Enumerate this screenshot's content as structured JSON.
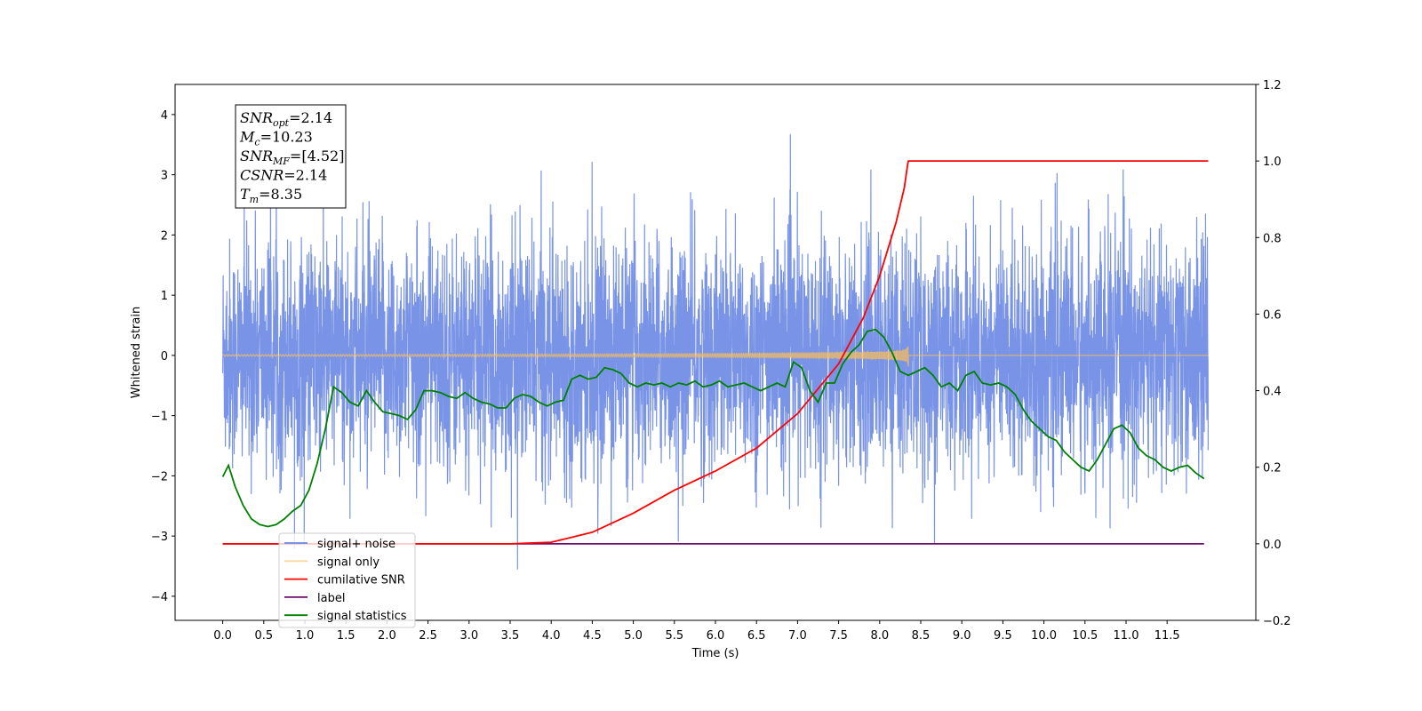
{
  "chart_data": {
    "type": "line",
    "title": "",
    "xlabel": "Time (s)",
    "ylabel": "Whitened strain",
    "xlim": [
      -0.58,
      12.58
    ],
    "ylim_left": [
      -4.4,
      4.5
    ],
    "ylim_right": [
      -0.2,
      1.2
    ],
    "xticks": [
      0.0,
      0.5,
      1.0,
      1.5,
      2.0,
      2.5,
      3.0,
      3.5,
      4.0,
      4.5,
      5.0,
      5.5,
      6.0,
      6.5,
      7.0,
      7.5,
      8.0,
      8.5,
      9.0,
      9.5,
      10.0,
      10.5,
      11.0,
      11.5
    ],
    "xtick_labels": [
      "0.0",
      "0.5",
      "1.0",
      "1.5",
      "2.0",
      "2.5",
      "3.0",
      "3.5",
      "4.0",
      "4.5",
      "5.0",
      "5.5",
      "6.0",
      "6.5",
      "7.0",
      "7.5",
      "8.0",
      "8.5",
      "9.0",
      "9.5",
      "10.0",
      "10.5",
      "11.0",
      "11.5"
    ],
    "yticks_left": [
      -4,
      -3,
      -2,
      -1,
      0,
      1,
      2,
      3,
      4
    ],
    "yticks_left_labels": [
      "−4",
      "−3",
      "−2",
      "−1",
      "0",
      "1",
      "2",
      "3",
      "4"
    ],
    "yticks_right": [
      -0.2,
      0.0,
      0.2,
      0.4,
      0.6,
      0.8,
      1.0,
      1.2
    ],
    "yticks_right_labels": [
      "−0.2",
      "0.0",
      "0.2",
      "0.4",
      "0.6",
      "0.8",
      "1.0",
      "1.2"
    ],
    "grid": false,
    "legend_position": "lower-left",
    "series": [
      {
        "name": "signal+ noise",
        "axis": "left",
        "color": "#6a88e3",
        "style": "noise",
        "x_range": [
          0.0,
          12.0
        ],
        "typical_range": [
          -2.5,
          2.5
        ],
        "peak_range": [
          -3.7,
          4.1
        ]
      },
      {
        "name": "signal only",
        "axis": "left",
        "color": "#f5bc60",
        "style": "chirp",
        "x_range": [
          0.0,
          8.35
        ],
        "peak_amplitude": 0.42,
        "merger_time": 8.35
      },
      {
        "name": "cumilative SNR",
        "axis": "right",
        "color": "#ff0000",
        "x": [
          0.0,
          3.5,
          4.0,
          4.5,
          5.0,
          5.5,
          6.0,
          6.5,
          7.0,
          7.5,
          7.8,
          8.0,
          8.2,
          8.3,
          8.34,
          8.35,
          12.0
        ],
        "y": [
          0.0,
          0.0,
          0.004,
          0.03,
          0.08,
          0.14,
          0.19,
          0.25,
          0.34,
          0.47,
          0.59,
          0.7,
          0.84,
          0.93,
          0.99,
          1.0,
          1.0
        ]
      },
      {
        "name": "label",
        "axis": "right",
        "color": "#6d0f6d",
        "x": [
          0.0,
          11.95
        ],
        "y": [
          0.0,
          0.0
        ]
      },
      {
        "name": "signal statistics",
        "axis": "right",
        "color": "#008000",
        "x": [
          0.0,
          0.07,
          0.15,
          0.25,
          0.35,
          0.45,
          0.55,
          0.65,
          0.75,
          0.85,
          0.95,
          1.05,
          1.15,
          1.25,
          1.35,
          1.45,
          1.55,
          1.65,
          1.75,
          1.85,
          1.95,
          2.05,
          2.15,
          2.25,
          2.35,
          2.45,
          2.55,
          2.65,
          2.75,
          2.85,
          2.95,
          3.05,
          3.15,
          3.25,
          3.35,
          3.45,
          3.55,
          3.65,
          3.75,
          3.85,
          3.95,
          4.05,
          4.15,
          4.25,
          4.35,
          4.45,
          4.55,
          4.65,
          4.75,
          4.85,
          4.95,
          5.05,
          5.15,
          5.25,
          5.35,
          5.45,
          5.55,
          5.65,
          5.75,
          5.85,
          5.95,
          6.05,
          6.15,
          6.25,
          6.35,
          6.45,
          6.55,
          6.65,
          6.75,
          6.85,
          6.95,
          7.05,
          7.15,
          7.25,
          7.35,
          7.45,
          7.55,
          7.65,
          7.75,
          7.85,
          7.95,
          8.05,
          8.15,
          8.25,
          8.35,
          8.45,
          8.55,
          8.65,
          8.75,
          8.85,
          8.95,
          9.05,
          9.15,
          9.25,
          9.35,
          9.45,
          9.55,
          9.65,
          9.75,
          9.85,
          9.95,
          10.05,
          10.15,
          10.25,
          10.35,
          10.45,
          10.55,
          10.65,
          10.75,
          10.85,
          10.95,
          11.05,
          11.15,
          11.25,
          11.35,
          11.45,
          11.55,
          11.65,
          11.75,
          11.85,
          11.95
        ],
        "y": [
          0.175,
          0.205,
          0.15,
          0.1,
          0.065,
          0.05,
          0.045,
          0.05,
          0.065,
          0.085,
          0.1,
          0.14,
          0.21,
          0.3,
          0.41,
          0.395,
          0.37,
          0.36,
          0.4,
          0.37,
          0.345,
          0.34,
          0.335,
          0.325,
          0.35,
          0.4,
          0.4,
          0.395,
          0.385,
          0.38,
          0.395,
          0.38,
          0.37,
          0.365,
          0.355,
          0.355,
          0.38,
          0.39,
          0.385,
          0.37,
          0.36,
          0.37,
          0.375,
          0.43,
          0.44,
          0.43,
          0.435,
          0.46,
          0.455,
          0.445,
          0.42,
          0.41,
          0.42,
          0.415,
          0.42,
          0.41,
          0.42,
          0.415,
          0.425,
          0.41,
          0.415,
          0.425,
          0.41,
          0.415,
          0.42,
          0.41,
          0.4,
          0.41,
          0.42,
          0.41,
          0.475,
          0.46,
          0.4,
          0.37,
          0.42,
          0.42,
          0.47,
          0.5,
          0.52,
          0.555,
          0.56,
          0.54,
          0.5,
          0.45,
          0.44,
          0.45,
          0.46,
          0.44,
          0.41,
          0.42,
          0.4,
          0.44,
          0.45,
          0.42,
          0.415,
          0.42,
          0.41,
          0.39,
          0.35,
          0.32,
          0.3,
          0.28,
          0.27,
          0.24,
          0.22,
          0.2,
          0.19,
          0.22,
          0.26,
          0.3,
          0.31,
          0.29,
          0.25,
          0.23,
          0.22,
          0.2,
          0.19,
          0.2,
          0.205,
          0.185,
          0.17
        ]
      }
    ],
    "annotation": {
      "lines": [
        {
          "base": "SNR",
          "sub": "opt",
          "value": "=2.14"
        },
        {
          "base": "M",
          "sub": "c",
          "value": "=10.23"
        },
        {
          "base": "SNR",
          "sub": "MF",
          "value": "=[4.52]"
        },
        {
          "base": "CSNR",
          "sub": "",
          "value": "=2.14"
        },
        {
          "base": "T",
          "sub": "m",
          "value": "=8.35"
        }
      ]
    },
    "legend": [
      {
        "label": "signal+ noise",
        "color": "#6a88e3"
      },
      {
        "label": "signal only",
        "color": "#f5bc60"
      },
      {
        "label": "cumilative SNR",
        "color": "#ff0000"
      },
      {
        "label": "label",
        "color": "#6d0f6d"
      },
      {
        "label": "signal statistics",
        "color": "#008000"
      }
    ]
  }
}
